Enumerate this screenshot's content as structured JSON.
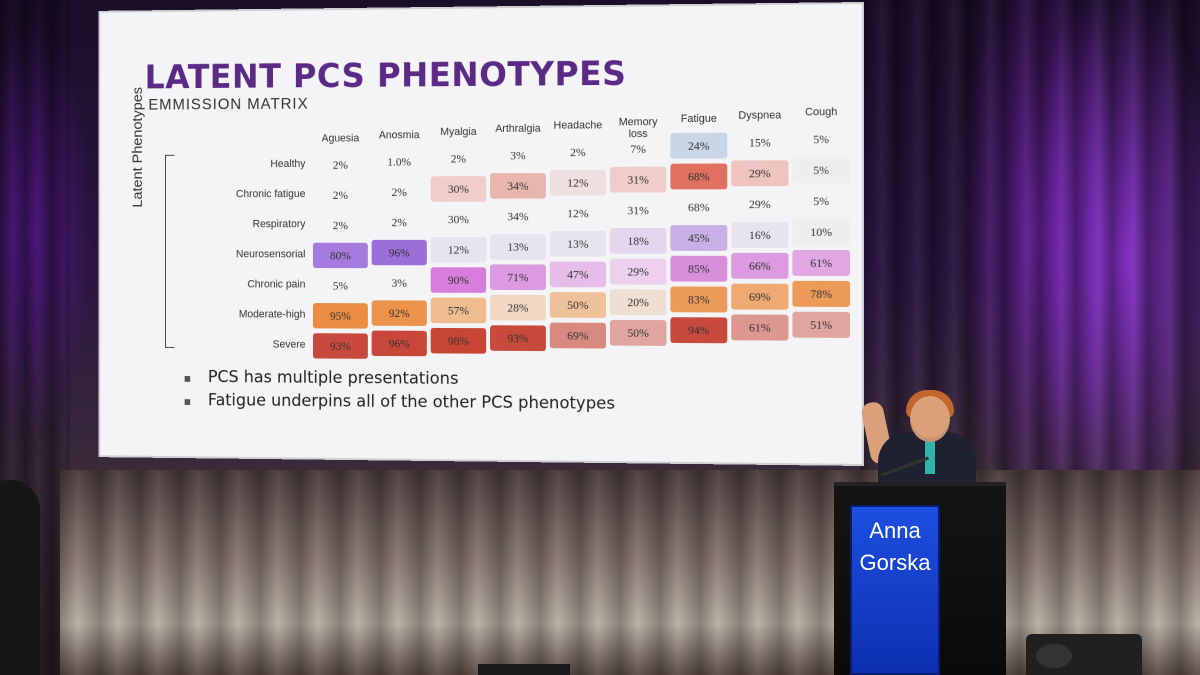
{
  "slide": {
    "title": "LATENT PCS PHENOTYPES",
    "subtitle": "EMMISSION MATRIX",
    "y_axis_label": "Latent Phenotypes",
    "columns": [
      "Aguesia",
      "Anosmia",
      "Myalgia",
      "Arthralgia",
      "Headache",
      "Memory loss",
      "Fatigue",
      "Dyspnea",
      "Cough"
    ],
    "rows": [
      {
        "label": "Healthy",
        "values": [
          "2%",
          "1.0%",
          "2%",
          "3%",
          "2%",
          "7%",
          "24%",
          "15%",
          "5%"
        ],
        "colors": [
          "",
          "",
          "",
          "",
          "",
          "",
          "#c9d6e6",
          "",
          ""
        ]
      },
      {
        "label": "Chronic fatigue",
        "values": [
          "2%",
          "2%",
          "30%",
          "34%",
          "12%",
          "31%",
          "68%",
          "29%",
          "5%"
        ],
        "colors": [
          "",
          "",
          "#efcdc8",
          "#e9b6ae",
          "#efdfe0",
          "#efcdc8",
          "#e07060",
          "#efc4c0",
          "#eeeeee"
        ]
      },
      {
        "label": "Respiratory",
        "values": [
          "2%",
          "2%",
          "30%",
          "34%",
          "12%",
          "31%",
          "68%",
          "29%",
          "5%"
        ],
        "colors": [
          "",
          "",
          "",
          "",
          "",
          "",
          "",
          "",
          ""
        ]
      },
      {
        "label": "Neurosensorial",
        "values": [
          "80%",
          "96%",
          "12%",
          "13%",
          "13%",
          "18%",
          "45%",
          "16%",
          "10%"
        ],
        "colors": [
          "#a57be0",
          "#9a6fd8",
          "#e7e4ef",
          "#e7e4ef",
          "#e7e4ef",
          "#e4d6ef",
          "#c8b0e6",
          "#e7e4ef",
          "#eeeeee"
        ]
      },
      {
        "label": "Chronic pain",
        "values": [
          "5%",
          "3%",
          "90%",
          "71%",
          "47%",
          "29%",
          "85%",
          "66%",
          "61%"
        ],
        "colors": [
          "",
          "",
          "#d77ddc",
          "#dc9ae0",
          "#e6bce8",
          "#ecd0ee",
          "#d98edc",
          "#dc9ae0",
          "#e0a7e2"
        ]
      },
      {
        "label": "Moderate-high",
        "values": [
          "95%",
          "92%",
          "57%",
          "28%",
          "50%",
          "20%",
          "83%",
          "69%",
          "78%"
        ],
        "colors": [
          "#ea8c42",
          "#eb934c",
          "#efbc90",
          "#f0d8c4",
          "#efc19a",
          "#efdfd2",
          "#ec9a58",
          "#eeaa72",
          "#ec9a58"
        ]
      },
      {
        "label": "Severe",
        "values": [
          "93%",
          "96%",
          "98%",
          "93%",
          "69%",
          "50%",
          "94%",
          "61%",
          "51%"
        ],
        "colors": [
          "#c74a3d",
          "#c8473a",
          "#c64535",
          "#c74a3d",
          "#d98a80",
          "#dfa59e",
          "#c74a3d",
          "#dc9890",
          "#dfa59e"
        ]
      }
    ],
    "bullets": [
      "PCS has multiple presentations",
      "Fatigue underpins all of the other PCS phenotypes"
    ]
  },
  "podium": {
    "name_line1": "Anna",
    "name_line2": "Gorska"
  }
}
